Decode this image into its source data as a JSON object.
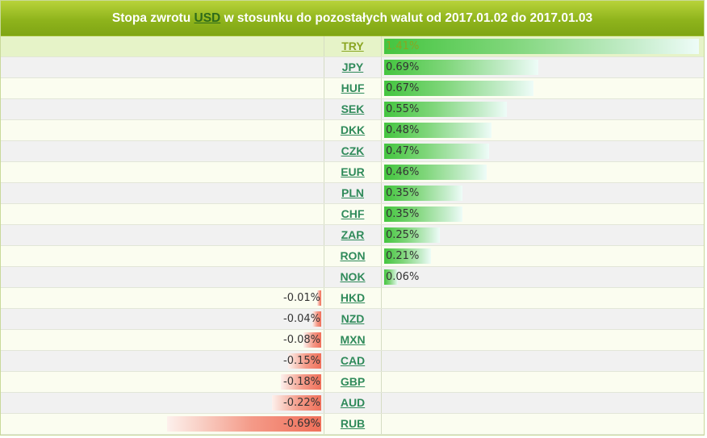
{
  "header": {
    "prefix": "Stopa zwrotu ",
    "base_currency": "USD",
    "suffix": " w stosunku do pozostałych walut od 2017.01.02 do 2017.01.03"
  },
  "colors": {
    "positive_bar": "#44c53f",
    "negative_bar": "#f0705a",
    "header_bg": "#8fb41c",
    "currency_link": "#2f8a5a"
  },
  "chart_data": {
    "type": "bar",
    "orientation": "horizontal-diverging",
    "title": "Stopa zwrotu USD w stosunku do pozostałych walut od 2017.01.02 do 2017.01.03",
    "categories": [
      "TRY",
      "JPY",
      "HUF",
      "SEK",
      "DKK",
      "CZK",
      "EUR",
      "PLN",
      "CHF",
      "ZAR",
      "RON",
      "NOK",
      "HKD",
      "NZD",
      "MXN",
      "CAD",
      "GBP",
      "AUD",
      "RUB"
    ],
    "values": [
      1.41,
      0.69,
      0.67,
      0.55,
      0.48,
      0.47,
      0.46,
      0.35,
      0.35,
      0.25,
      0.21,
      0.06,
      -0.01,
      -0.04,
      -0.08,
      -0.15,
      -0.18,
      -0.22,
      -0.69
    ],
    "labels": [
      "1.41%",
      "0.69%",
      "0.67%",
      "0.55%",
      "0.48%",
      "0.47%",
      "0.46%",
      "0.35%",
      "0.35%",
      "0.25%",
      "0.21%",
      "0.06%",
      "-0.01%",
      "-0.04%",
      "-0.08%",
      "-0.15%",
      "-0.18%",
      "-0.22%",
      "-0.69%"
    ],
    "unit": "%",
    "highlighted": "TRY",
    "xlim": [
      -1.41,
      1.41
    ]
  }
}
